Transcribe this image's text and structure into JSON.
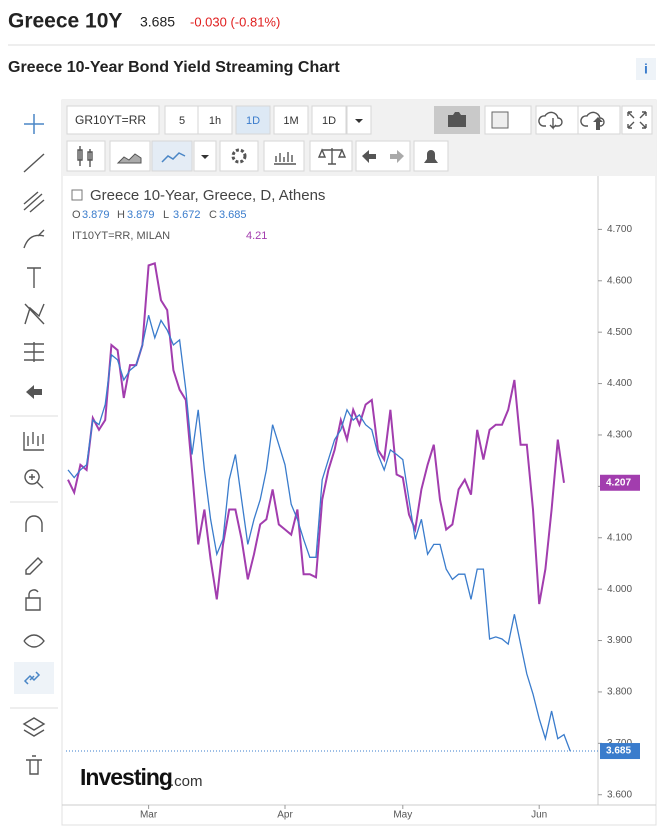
{
  "header": {
    "name": "Greece 10Y",
    "price": "3.685",
    "change": "-0.030 (-0.81%)",
    "chart_title": "Greece 10-Year Bond Yield Streaming Chart",
    "info": "i"
  },
  "toolbar": {
    "symbol": "GR10YT=RR",
    "intervals": [
      "5",
      "1h",
      "1D",
      "1M",
      "1D"
    ]
  },
  "legend": {
    "main": "Greece 10-Year, Greece, D, Athens",
    "ohlc": [
      {
        "label": "O",
        "value": "3.879"
      },
      {
        "label": "H",
        "value": "3.879"
      },
      {
        "label": "L",
        "value": "3.672"
      },
      {
        "label": "C",
        "value": "3.685"
      }
    ],
    "compare": "IT10YT=RR, MILAN",
    "compare_value": "4.21"
  },
  "watermark": {
    "brand": "Investing",
    ".com": ".com"
  },
  "chart_data": {
    "type": "line",
    "grid": false,
    "categories": [
      null,
      null,
      null,
      null,
      null,
      null,
      null,
      null,
      null,
      null,
      null,
      null,
      null,
      "Mar",
      null,
      null,
      null,
      null,
      null,
      null,
      null,
      null,
      null,
      null,
      null,
      null,
      null,
      null,
      null,
      null,
      null,
      null,
      null,
      null,
      null,
      "Apr",
      null,
      null,
      null,
      null,
      null,
      null,
      null,
      null,
      null,
      null,
      null,
      null,
      null,
      null,
      null,
      null,
      null,
      null,
      "May",
      null,
      null,
      null,
      null,
      null,
      null,
      null,
      null,
      null,
      null,
      null,
      null,
      null,
      null,
      null,
      null,
      null,
      null,
      null,
      null,
      null,
      "Jun",
      null,
      null,
      null,
      null,
      null
    ],
    "ylim": [
      3.58,
      4.8
    ],
    "yticks": [
      {
        "value": 4.7,
        "label": "4.700"
      },
      {
        "value": 4.6,
        "label": "4.600"
      },
      {
        "value": 4.5,
        "label": "4.500"
      },
      {
        "value": 4.4,
        "label": "4.400"
      },
      {
        "value": 4.3,
        "label": "4.300"
      },
      {
        "value": 4.2,
        "label": "4.200"
      },
      {
        "value": 4.1,
        "label": "4.100"
      },
      {
        "value": 4.0,
        "label": "4.000"
      },
      {
        "value": 3.9,
        "label": "3.900"
      },
      {
        "value": 3.8,
        "label": "3.800"
      },
      {
        "value": 3.7,
        "label": "3.700"
      },
      {
        "value": 3.6,
        "label": "3.600"
      }
    ],
    "series": [
      {
        "name": "Greece 10-Year",
        "color": "#3a7ccc",
        "last_value": 3.685,
        "values": [
          4.232,
          4.217,
          4.232,
          4.242,
          4.329,
          4.32,
          4.359,
          4.456,
          4.446,
          4.407,
          4.426,
          4.436,
          4.475,
          4.533,
          4.489,
          4.523,
          4.504,
          4.475,
          4.485,
          4.388,
          4.262,
          4.349,
          4.232,
          4.136,
          4.068,
          4.097,
          4.213,
          4.262,
          4.174,
          4.087,
          4.136,
          4.174,
          4.232,
          4.32,
          4.281,
          4.242,
          4.165,
          4.136,
          4.097,
          4.062,
          4.062,
          4.213,
          4.252,
          4.291,
          4.31,
          4.349,
          4.329,
          4.339,
          4.32,
          4.31,
          4.262,
          4.232,
          4.271,
          4.262,
          4.252,
          4.174,
          4.097,
          4.136,
          4.068,
          4.087,
          4.087,
          4.039,
          4.019,
          4.029,
          4.029,
          3.98,
          4.039,
          4.039,
          3.903,
          3.907,
          3.903,
          3.893,
          3.951,
          3.893,
          3.835,
          3.796,
          3.748,
          3.709,
          3.763,
          3.709,
          3.717,
          3.685
        ]
      },
      {
        "name": "IT10YT=RR",
        "color": "#a23dae",
        "last_value": 4.207,
        "values": [
          4.213,
          4.188,
          4.242,
          4.232,
          4.333,
          4.31,
          4.329,
          4.475,
          4.465,
          4.372,
          4.436,
          4.436,
          4.475,
          4.63,
          4.634,
          4.562,
          4.543,
          4.426,
          4.388,
          4.368,
          4.232,
          4.087,
          4.155,
          4.058,
          3.98,
          4.087,
          4.155,
          4.155,
          4.097,
          4.019,
          4.068,
          4.126,
          4.136,
          4.194,
          4.126,
          4.116,
          4.106,
          4.155,
          4.029,
          4.029,
          4.023,
          4.174,
          4.232,
          4.271,
          4.329,
          4.291,
          4.349,
          4.32,
          4.359,
          4.368,
          4.271,
          4.252,
          4.349,
          4.223,
          4.217,
          4.145,
          4.116,
          4.194,
          4.242,
          4.281,
          4.174,
          4.116,
          4.126,
          4.194,
          4.213,
          4.184,
          4.31,
          4.252,
          4.31,
          4.32,
          4.32,
          4.349,
          4.407,
          4.281,
          4.281,
          4.155,
          3.971,
          4.039,
          4.155,
          4.291,
          4.207,
          null
        ]
      }
    ]
  }
}
